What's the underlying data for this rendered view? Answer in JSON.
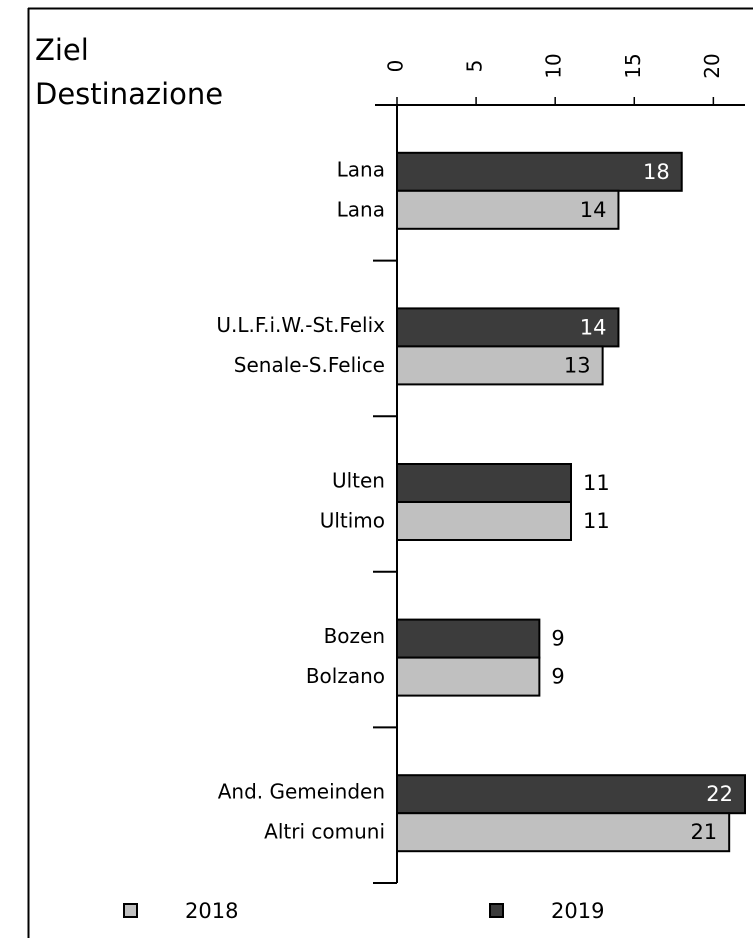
{
  "chart_data": {
    "type": "bar",
    "orientation": "horizontal",
    "title": [
      "Ziel",
      "Destinazione"
    ],
    "categories": [
      [
        "Lana",
        "Lana"
      ],
      [
        "U.L.F.i.W.-St.Felix",
        "Senale-S.Felice"
      ],
      [
        "Ulten",
        "Ultimo"
      ],
      [
        "Bozen",
        "Bolzano"
      ],
      [
        "And. Gemeinden",
        "Altri comuni"
      ]
    ],
    "series": [
      {
        "name": "2019",
        "color": "#3c3c3c",
        "values": [
          18,
          14,
          11,
          9,
          22
        ]
      },
      {
        "name": "2018",
        "color": "#c0c0c0",
        "values": [
          14,
          13,
          11,
          9,
          21
        ]
      }
    ],
    "xlim": [
      0,
      22
    ],
    "xticks": [
      0,
      5,
      10,
      15,
      20
    ],
    "legend": "bottom"
  }
}
